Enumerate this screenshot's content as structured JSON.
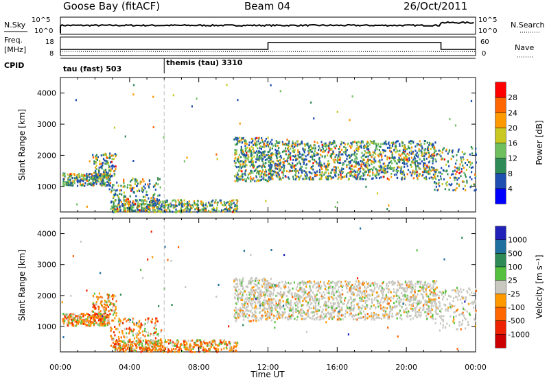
{
  "header": {
    "station": "Goose Bay (fitACF)",
    "beam": "Beam 04",
    "date": "26/Oct/2011"
  },
  "status_panel": {
    "nsky_label": "N.Sky",
    "nsearch_label": "N.Search",
    "nsky_ticks": [
      "10^5",
      "10^0"
    ],
    "freq_label_line1": "Freq.",
    "freq_label_line2": "[MHz]",
    "freq_ticks": [
      "18",
      "8"
    ],
    "nave_label": "Nave",
    "nave_ticks": [
      "60",
      "0"
    ],
    "cpid_label": "CPID",
    "cpid_segments": [
      {
        "label": "tau (fast) 503",
        "start_hour": 0
      },
      {
        "label": "themis (tau) 3310",
        "start_hour": 6
      }
    ]
  },
  "chart_data": [
    {
      "type": "heatmap",
      "xlabel": "",
      "ylabel": "Slant Range [km]",
      "xlim": [
        0,
        24
      ],
      "ylim": [
        180,
        4500
      ],
      "y_ticks": [
        "1000",
        "2000",
        "3000",
        "4000"
      ],
      "colorbar": {
        "label": "Power [dB]",
        "ticks": [
          "4",
          "8",
          "12",
          "16",
          "20",
          "24",
          "28"
        ],
        "colors": [
          "#0000ff",
          "#1f4fb0",
          "#2e8b57",
          "#6fbf5f",
          "#c8c820",
          "#ff9900",
          "#ff6600",
          "#ff0000"
        ]
      }
    },
    {
      "type": "heatmap",
      "xlabel": "Time UT",
      "ylabel": "Slant Range [km]",
      "xlim": [
        0,
        24
      ],
      "ylim": [
        180,
        4500
      ],
      "x_ticks": [
        "00:00",
        "04:00",
        "08:00",
        "12:00",
        "16:00",
        "20:00",
        "00:00"
      ],
      "y_ticks": [
        "1000",
        "2000",
        "3000",
        "4000"
      ],
      "colorbar": {
        "label": "Velocity [m s⁻¹]",
        "ticks": [
          "1000",
          "500",
          "100",
          "25",
          "-25",
          "-100",
          "-500",
          "-1000"
        ],
        "colors": [
          "#2222bb",
          "#1f6f9f",
          "#2e8b57",
          "#55c040",
          "#c8c8c0",
          "#ff9900",
          "#ff6600",
          "#ee2200",
          "#cc0000"
        ]
      }
    }
  ]
}
